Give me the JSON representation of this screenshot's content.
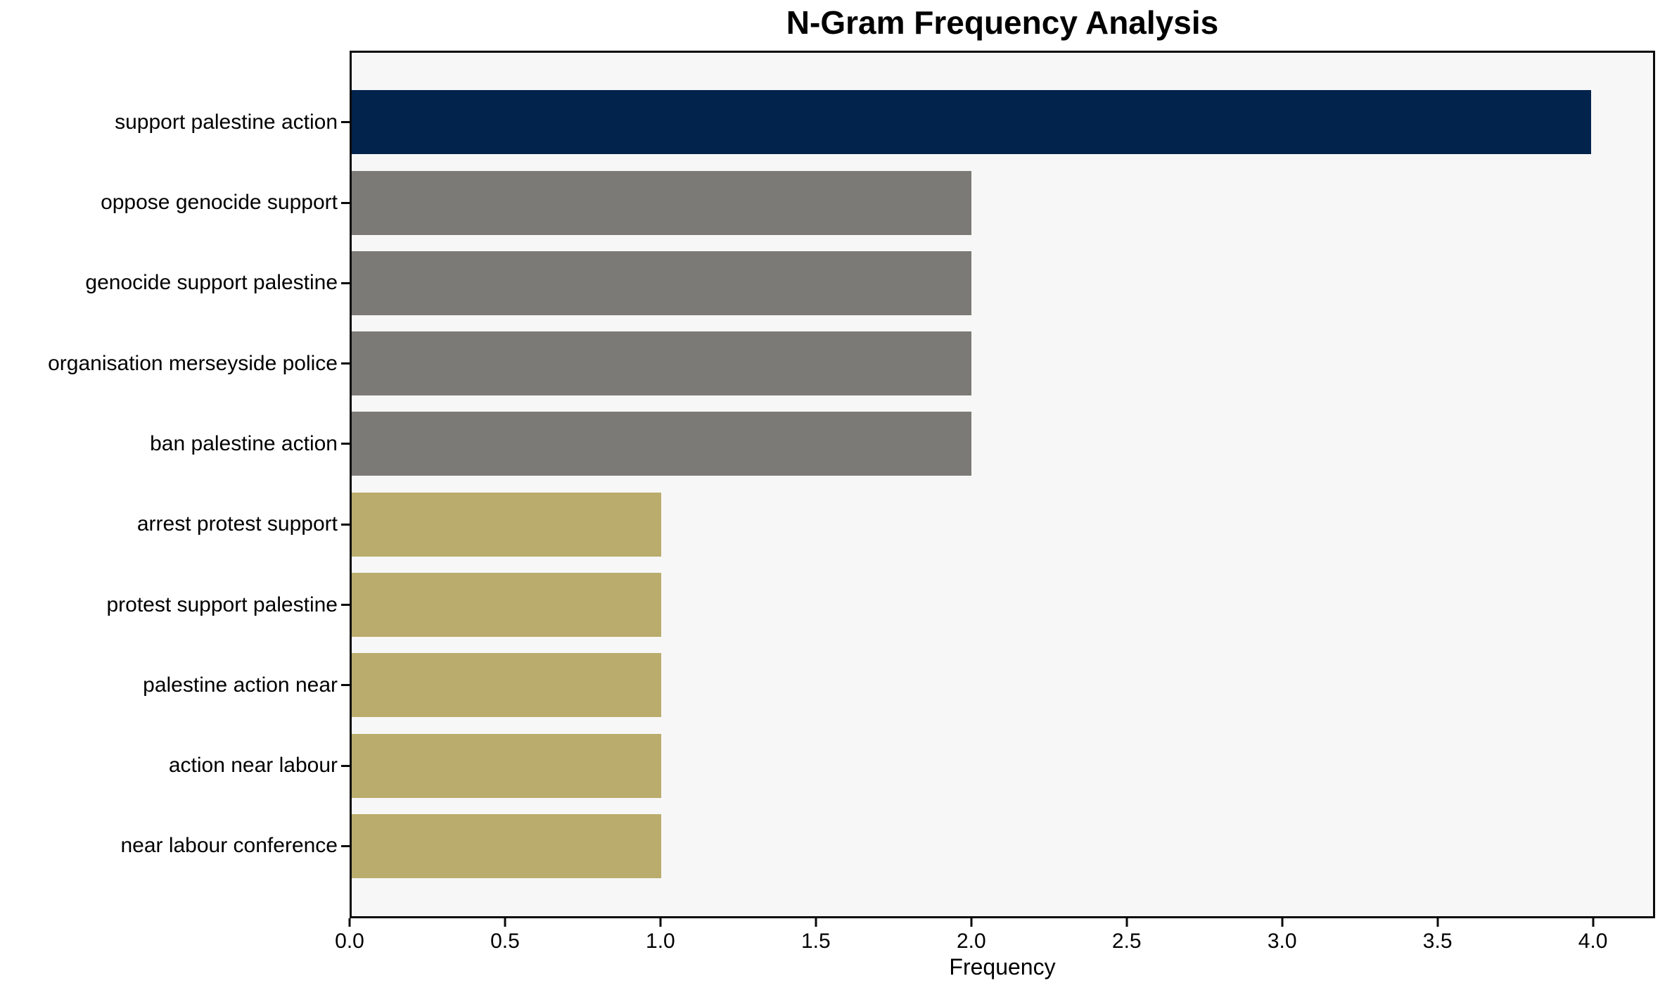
{
  "chart_data": {
    "type": "bar",
    "orientation": "horizontal",
    "title": "N-Gram Frequency Analysis",
    "xlabel": "Frequency",
    "ylabel": "",
    "categories": [
      "support palestine action",
      "oppose genocide support",
      "genocide support palestine",
      "organisation merseyside police",
      "ban palestine action",
      "arrest protest support",
      "protest support palestine",
      "palestine action near",
      "action near labour",
      "near labour conference"
    ],
    "values": [
      4,
      2,
      2,
      2,
      2,
      1,
      1,
      1,
      1,
      1
    ],
    "bar_colors": [
      "#02234c",
      "#7b7a76",
      "#7b7a76",
      "#7b7a76",
      "#7b7a76",
      "#b9ac6c",
      "#b9ac6c",
      "#b9ac6c",
      "#b9ac6c",
      "#b9ac6c"
    ],
    "xlim": [
      0,
      4.2
    ],
    "xticks": [
      0,
      0.5,
      1.0,
      1.5,
      2.0,
      2.5,
      3.0,
      3.5,
      4.0
    ],
    "xtick_labels": [
      "0.0",
      "0.5",
      "1.0",
      "1.5",
      "2.0",
      "2.5",
      "3.0",
      "3.5",
      "4.0"
    ],
    "grid": false,
    "legend_position": "none",
    "plot_background": "#f7f7f7",
    "figure_background": "#ffffff",
    "spine_color": "#0a0a0a"
  }
}
